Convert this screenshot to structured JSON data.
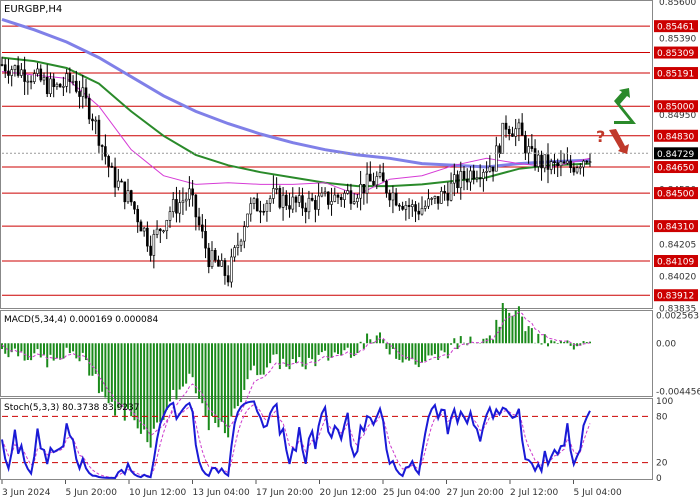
{
  "chart_data": [
    {
      "type": "candlestick",
      "title": "EURGBP,H4",
      "y_axis_labels": [
        "0.85600",
        "0.85390",
        "0.85180",
        "0.84950",
        "0.84830",
        "0.84730",
        "0.84520",
        "0.84310",
        "0.84205",
        "0.84020",
        "0.83835"
      ],
      "ylim": [
        0.8385,
        0.856
      ],
      "level_lines": [
        0.85461,
        0.85309,
        0.85191,
        0.85,
        0.8483,
        0.8465,
        0.845,
        0.8431,
        0.84109,
        0.83912
      ],
      "level_labels": [
        "0.85461",
        "0.85309",
        "0.85191",
        "0.85000",
        "0.84830",
        "0.84650",
        "0.84500",
        "0.84310",
        "0.84109",
        "0.83912"
      ],
      "current_price": 0.84729,
      "current_price_label": "0.84729",
      "colors": {
        "level": "#cc0000",
        "candle_up": "#000000",
        "candle_down": "#000000",
        "ma_fast": "#d63bd6",
        "ma_mid": "#2a8a2a",
        "ma_slow": "#8080e8",
        "arrow_up": "#2a8a2a",
        "arrow_down": "#c0392b",
        "question": "#c0392b"
      },
      "series_ma_slow": [
        [
          0,
          0.855
        ],
        [
          10,
          0.8544
        ],
        [
          20,
          0.8537
        ],
        [
          30,
          0.8528
        ],
        [
          40,
          0.8517
        ],
        [
          50,
          0.8506
        ],
        [
          60,
          0.8497
        ],
        [
          70,
          0.849
        ],
        [
          80,
          0.8484
        ],
        [
          90,
          0.8479
        ],
        [
          100,
          0.8475
        ],
        [
          110,
          0.8472
        ],
        [
          120,
          0.847
        ],
        [
          130,
          0.8467
        ],
        [
          140,
          0.8466
        ],
        [
          150,
          0.8465
        ],
        [
          160,
          0.8467
        ],
        [
          170,
          0.8468
        ],
        [
          182,
          0.8469
        ]
      ],
      "series_ma_mid": [
        [
          0,
          0.8528
        ],
        [
          10,
          0.8526
        ],
        [
          20,
          0.8522
        ],
        [
          30,
          0.8513
        ],
        [
          40,
          0.8497
        ],
        [
          50,
          0.8483
        ],
        [
          60,
          0.8472
        ],
        [
          70,
          0.8466
        ],
        [
          80,
          0.8462
        ],
        [
          90,
          0.8459
        ],
        [
          100,
          0.8456
        ],
        [
          110,
          0.8454
        ],
        [
          120,
          0.8454
        ],
        [
          130,
          0.8455
        ],
        [
          140,
          0.8457
        ],
        [
          150,
          0.8459
        ],
        [
          160,
          0.8464
        ],
        [
          170,
          0.8466
        ],
        [
          182,
          0.8467
        ]
      ],
      "series_ma_fast": [
        [
          0,
          0.852
        ],
        [
          10,
          0.8518
        ],
        [
          20,
          0.8516
        ],
        [
          30,
          0.85
        ],
        [
          40,
          0.8475
        ],
        [
          50,
          0.846
        ],
        [
          60,
          0.8455
        ],
        [
          70,
          0.8456
        ],
        [
          80,
          0.8455
        ],
        [
          90,
          0.8455
        ],
        [
          100,
          0.8456
        ],
        [
          110,
          0.8449
        ],
        [
          120,
          0.8458
        ],
        [
          130,
          0.846
        ],
        [
          140,
          0.8466
        ],
        [
          150,
          0.847
        ],
        [
          160,
          0.8467
        ],
        [
          170,
          0.8465
        ],
        [
          182,
          0.847
        ]
      ]
    },
    {
      "type": "histogram",
      "title": "MACD(5,34,4) 0.000169 0.000084",
      "y_axis_labels": [
        "0.002563",
        "0.00",
        "-0.004456"
      ],
      "ylim": [
        -0.0048,
        0.0029
      ],
      "signal_color": "#cc3bcc",
      "bar_color": "#1a8a1a"
    },
    {
      "type": "line",
      "title": "Stoch(5,3,3) 80.3738 83.9237",
      "y_axis_labels": [
        "100",
        "80",
        "20",
        "0"
      ],
      "ylim": [
        0,
        100
      ],
      "levels": [
        80,
        20
      ],
      "main_color": "#1a1ad6",
      "signal_color": "#cc3bcc"
    }
  ],
  "x_axis_labels": [
    "3 Jun 2024",
    "5 Jun 20:00",
    "10 Jun 12:00",
    "13 Jun 04:00",
    "17 Jun 20:00",
    "20 Jun 12:00",
    "25 Jun 04:00",
    "27 Jun 20:00",
    "2 Jul 12:00",
    "5 Jul 04:00"
  ],
  "signal_marks": {
    "question": "?"
  }
}
